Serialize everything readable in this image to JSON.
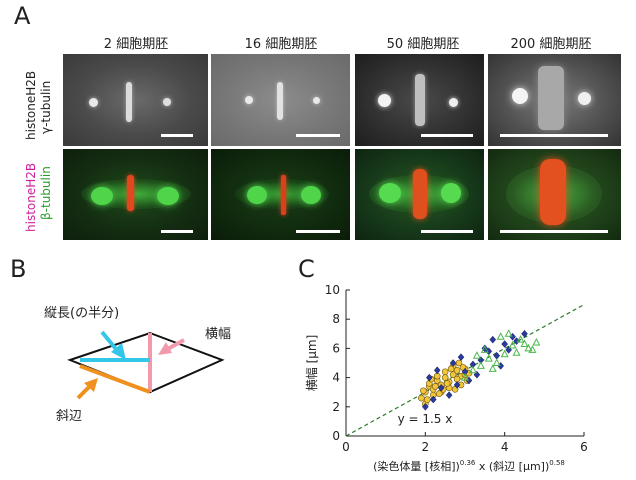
{
  "panels": {
    "a_letter": "A",
    "b_letter": "B",
    "c_letter": "C"
  },
  "panel_a": {
    "columns": [
      "2 細胞期胚",
      "16 細胞期胚",
      "50 細胞期胚",
      "200 細胞期胚"
    ],
    "row1_label_top": "histoneH2B",
    "row1_label_bottom": "γ-tubulin",
    "row2_label_top": "histoneH2B",
    "row2_label_bottom": "β-tubulin",
    "row2_label_top_color": "#d0219b",
    "row2_label_bottom_color": "#2f9a2f"
  },
  "panel_b": {
    "label_half_length": "縦長(の半分)",
    "label_width": "横幅",
    "label_hypotenuse": "斜辺",
    "colors": {
      "half_length": "#34c6e8",
      "width": "#f29aac",
      "hypotenuse": "#f0901e"
    }
  },
  "chart_data": {
    "type": "scatter",
    "ylabel": "横幅 [µm]",
    "xlabel_main": "(染色体量 [核相])",
    "xlabel_exp1": "0.36",
    "xlabel_mid": " x (斜辺 [µm])",
    "xlabel_exp2": "0.58",
    "xlim": [
      0,
      6
    ],
    "ylim": [
      0,
      10
    ],
    "xticks": [
      0,
      2,
      4,
      6
    ],
    "yticks": [
      0,
      2,
      4,
      6,
      8,
      10
    ],
    "fit_label": "y = 1.5 x",
    "fit_slope": 1.5,
    "series": [
      {
        "marker": "circle",
        "color": "#f2c53a",
        "x": [
          1.9,
          2.0,
          2.1,
          2.2,
          2.3,
          2.4,
          2.5,
          2.6,
          2.7,
          2.8,
          2.9,
          3.0,
          2.0,
          2.2,
          2.4,
          2.6,
          2.8,
          3.0,
          2.1,
          2.3,
          2.5,
          2.7,
          2.9,
          1.95,
          2.15,
          2.35,
          2.55,
          2.75,
          2.95,
          3.1,
          2.05,
          2.45,
          2.65,
          2.85,
          3.05,
          2.25
        ],
        "y": [
          2.6,
          3.0,
          3.4,
          3.2,
          3.8,
          3.5,
          4.0,
          3.7,
          4.2,
          4.5,
          4.1,
          4.6,
          2.2,
          2.8,
          3.0,
          3.3,
          3.9,
          4.2,
          3.6,
          4.1,
          4.4,
          4.8,
          3.5,
          3.1,
          3.9,
          2.9,
          3.6,
          3.2,
          4.7,
          4.3,
          2.5,
          3.2,
          4.6,
          5.0,
          3.8,
          3.4
        ]
      },
      {
        "marker": "diamond",
        "color": "#2b3a9a",
        "x": [
          2.0,
          2.2,
          2.4,
          2.6,
          2.8,
          3.0,
          3.2,
          3.4,
          3.6,
          3.8,
          4.0,
          4.2,
          2.3,
          2.7,
          3.1,
          3.5,
          3.9,
          4.3,
          4.5,
          2.1,
          2.9,
          3.3,
          3.7,
          4.1
        ],
        "y": [
          2.0,
          2.5,
          3.3,
          2.8,
          3.5,
          4.4,
          4.9,
          5.2,
          5.8,
          5.5,
          6.3,
          6.8,
          4.5,
          5.0,
          3.8,
          6.0,
          4.8,
          6.5,
          7.0,
          4.0,
          5.4,
          4.2,
          6.6,
          5.9
        ]
      },
      {
        "marker": "triangle",
        "color": "#49b84a",
        "x": [
          3.0,
          3.2,
          3.4,
          3.6,
          3.8,
          4.0,
          4.2,
          4.4,
          4.6,
          4.8,
          3.5,
          3.9,
          4.3,
          4.7,
          3.3,
          3.7,
          4.1,
          4.5
        ],
        "y": [
          4.0,
          4.5,
          4.8,
          5.3,
          5.0,
          5.6,
          6.2,
          6.6,
          6.0,
          6.4,
          5.9,
          6.8,
          5.7,
          5.9,
          5.5,
          4.6,
          7.0,
          6.3
        ]
      }
    ]
  }
}
